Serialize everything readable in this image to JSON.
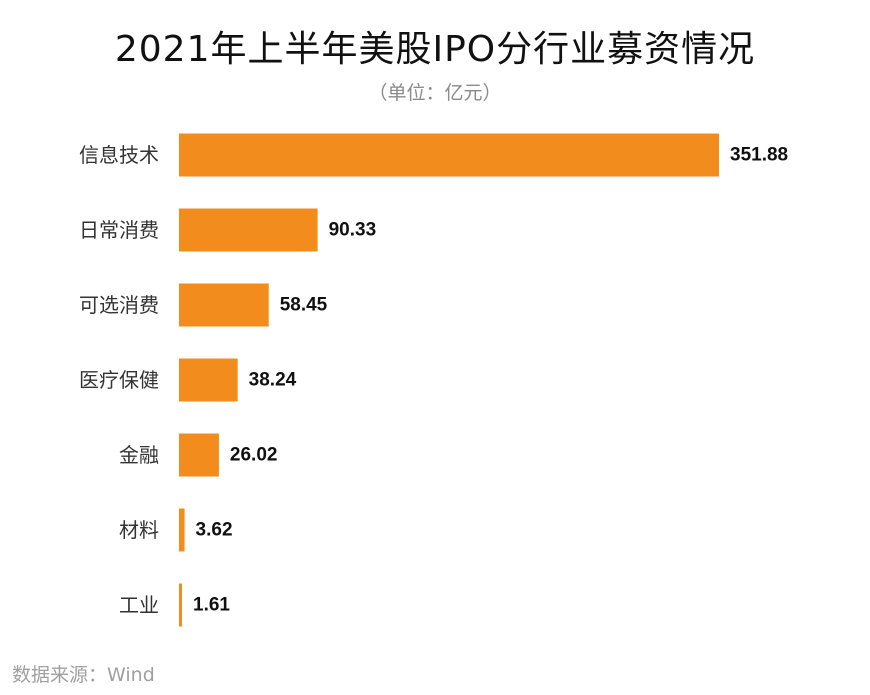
{
  "chart_data": {
    "type": "bar",
    "orientation": "horizontal",
    "title": "2021年上半年美股IPO分行业募资情况",
    "subtitle": "（单位：亿元）",
    "categories": [
      "信息技术",
      "日常消费",
      "可选消费",
      "医疗保健",
      "金融",
      "材料",
      "工业"
    ],
    "values": [
      351.88,
      90.33,
      58.45,
      38.24,
      26.02,
      3.62,
      1.61
    ],
    "value_labels": [
      "351.88",
      "90.33",
      "58.45",
      "38.24",
      "26.02",
      "3.62",
      "1.61"
    ],
    "bar_color": "#f28c1c",
    "grid": false,
    "legend": "none"
  },
  "source": "数据来源：Wind"
}
